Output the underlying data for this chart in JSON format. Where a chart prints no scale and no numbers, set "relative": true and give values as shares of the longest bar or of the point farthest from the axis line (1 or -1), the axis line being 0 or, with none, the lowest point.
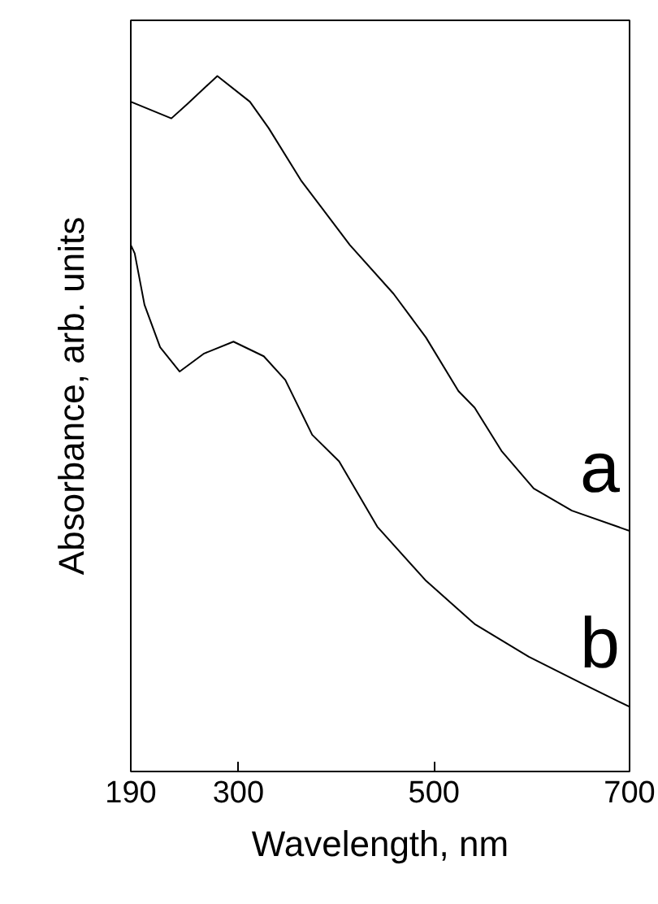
{
  "chart_data": {
    "type": "line",
    "xlabel": "Wavelength, nm",
    "ylabel": "Absorbance, arb. units",
    "relative": true,
    "xlim": [
      190,
      700
    ],
    "xticks": [
      190,
      300,
      500,
      700
    ],
    "grid": false,
    "marker": "none",
    "line_style": "solid",
    "series": [
      {
        "name": "a",
        "color": "#000000",
        "x": [
          190,
          195,
          231.5,
          248,
          278.5,
          311.8,
          331,
          364,
          414,
          458.6,
          491.8,
          525,
          541.6,
          569,
          602,
          641,
          700
        ],
        "values": [
          0.963,
          0.96,
          0.939,
          0.96,
          1.0,
          0.963,
          0.925,
          0.85,
          0.757,
          0.687,
          0.624,
          0.547,
          0.523,
          0.461,
          0.407,
          0.375,
          0.346
        ]
      },
      {
        "name": "b",
        "color": "#000000",
        "x": [
          190,
          194,
          204,
          220,
          240,
          265,
          295,
          326,
          348,
          375.5,
          403,
          442,
          492,
          541.6,
          597,
          652,
          700
        ],
        "values": [
          0.757,
          0.745,
          0.671,
          0.61,
          0.575,
          0.601,
          0.618,
          0.597,
          0.563,
          0.484,
          0.446,
          0.352,
          0.274,
          0.212,
          0.165,
          0.126,
          0.093
        ]
      }
    ]
  }
}
